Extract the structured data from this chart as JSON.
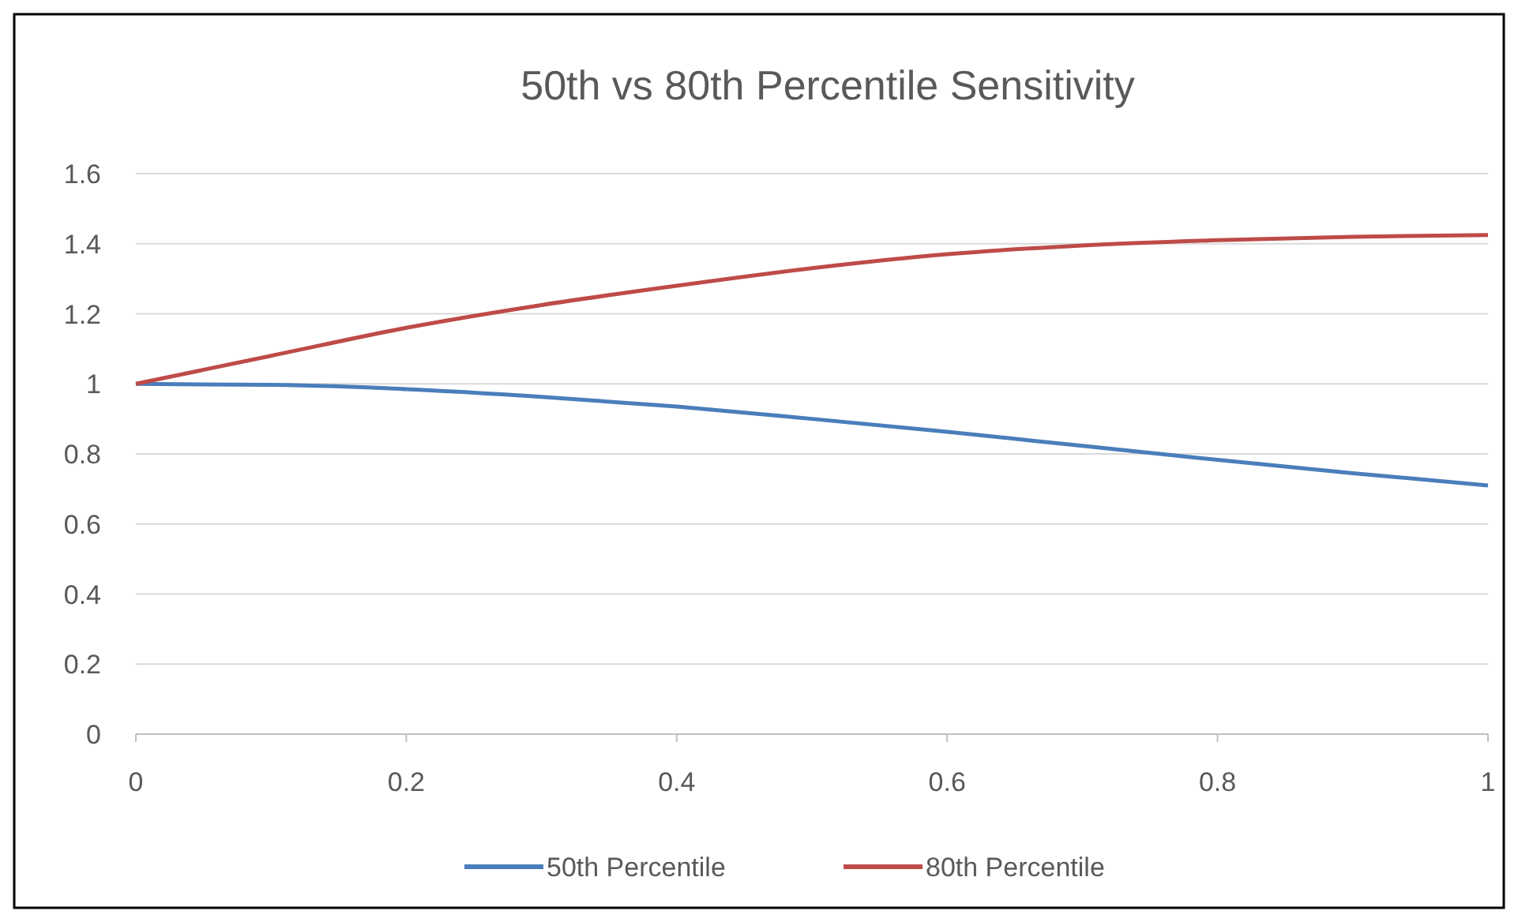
{
  "chart_data": {
    "type": "line",
    "title": "50th vs 80th Percentile Sensitivity",
    "x": [
      0,
      0.1,
      0.2,
      0.3,
      0.4,
      0.5,
      0.6,
      0.7,
      0.8,
      0.9,
      1
    ],
    "series": [
      {
        "name": "50th Percentile",
        "color": "#4a7ebb",
        "values": [
          1,
          0.997,
          0.985,
          0.963,
          0.935,
          0.9,
          0.863,
          0.823,
          0.783,
          0.745,
          0.71
        ]
      },
      {
        "name": "80th Percentile",
        "color": "#be4b48",
        "values": [
          1,
          1.08,
          1.16,
          1.225,
          1.28,
          1.33,
          1.37,
          1.395,
          1.41,
          1.42,
          1.425
        ]
      }
    ],
    "xlim": [
      0,
      1
    ],
    "xticks": [
      0,
      0.2,
      0.4,
      0.6,
      0.8,
      1
    ],
    "ylim": [
      0,
      1.6
    ],
    "yticks": [
      0,
      0.2,
      0.4,
      0.6,
      0.8,
      1,
      1.2,
      1.4,
      1.6
    ],
    "grid": "y",
    "legend": "bottom",
    "marker": "none",
    "line_style": "solid"
  }
}
